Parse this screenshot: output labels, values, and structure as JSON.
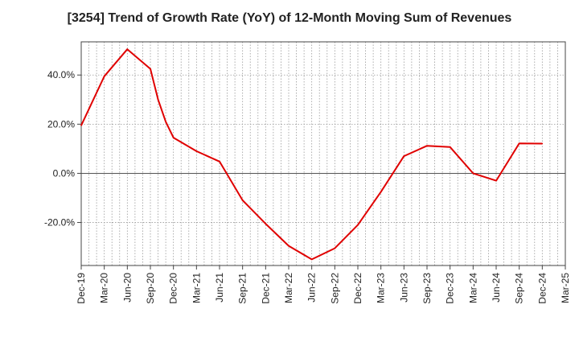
{
  "chart_data": {
    "type": "line",
    "title": "[3254]  Trend of Growth Rate (YoY) of 12-Month Moving Sum of Revenues",
    "xlabel": "",
    "ylabel": "",
    "x_ticks": [
      "Dec-19",
      "Mar-20",
      "Jun-20",
      "Sep-20",
      "Dec-20",
      "Mar-21",
      "Jun-21",
      "Sep-21",
      "Dec-21",
      "Mar-22",
      "Jun-22",
      "Sep-22",
      "Dec-22",
      "Mar-23",
      "Jun-23",
      "Sep-23",
      "Dec-23",
      "Mar-24",
      "Jun-24",
      "Sep-24",
      "Dec-24",
      "Mar-25"
    ],
    "y_ticks": [
      {
        "value": 40,
        "label": "40.0%"
      },
      {
        "value": 20,
        "label": "20.0%"
      },
      {
        "value": 0,
        "label": "0.0%"
      },
      {
        "value": -20,
        "label": "-20.0%"
      }
    ],
    "ylim": [
      -37.5,
      53.5
    ],
    "grid": true,
    "line_color": "#e00000",
    "series": [
      {
        "values": [
          {
            "x": "Dec-19",
            "y": 19.5
          },
          {
            "x": "Mar-20",
            "y": 39.5
          },
          {
            "x": "Jun-20",
            "y": 50.5
          },
          {
            "x": "Sep-20",
            "y": 42.5
          },
          {
            "x": "Oct-20",
            "y": 30.0
          },
          {
            "x": "Nov-20",
            "y": 21.0
          },
          {
            "x": "Dec-20",
            "y": 14.5
          },
          {
            "x": "Mar-21",
            "y": 9.0
          },
          {
            "x": "Jun-21",
            "y": 4.8
          },
          {
            "x": "Sep-21",
            "y": -11.0
          },
          {
            "x": "Dec-21",
            "y": -20.5
          },
          {
            "x": "Mar-22",
            "y": -29.5
          },
          {
            "x": "Jun-22",
            "y": -35.0
          },
          {
            "x": "Sep-22",
            "y": -30.5
          },
          {
            "x": "Dec-22",
            "y": -21.0
          },
          {
            "x": "Mar-23",
            "y": -7.5
          },
          {
            "x": "Jun-23",
            "y": 7.0
          },
          {
            "x": "Sep-23",
            "y": 11.2
          },
          {
            "x": "Dec-23",
            "y": 10.7
          },
          {
            "x": "Mar-24",
            "y": 0.0
          },
          {
            "x": "Jun-24",
            "y": -3.0
          },
          {
            "x": "Sep-24",
            "y": 12.2
          },
          {
            "x": "Dec-24",
            "y": 12.1
          }
        ]
      }
    ]
  }
}
